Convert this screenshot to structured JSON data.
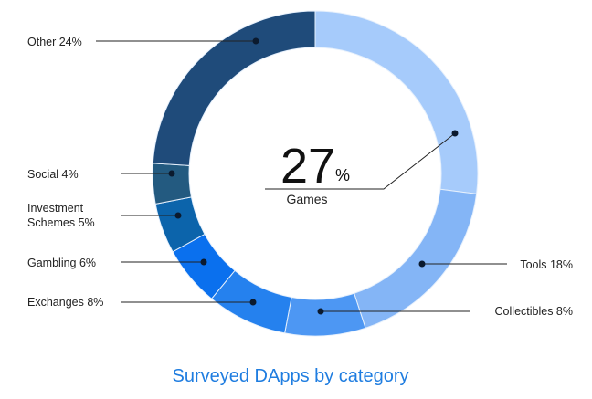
{
  "chart_data": {
    "type": "pie",
    "donut": true,
    "title": "Surveyed DApps by category",
    "highlight": {
      "value": "27",
      "unit": "%",
      "label": "Games"
    },
    "slices": [
      {
        "label": "Games",
        "value": 27,
        "color": "#a6cbfb"
      },
      {
        "label": "Tools",
        "value": 18,
        "color": "#84b5f6",
        "text": "Tools 18%"
      },
      {
        "label": "Collectibles",
        "value": 8,
        "color": "#4d97f3",
        "text": "Collectibles 8%"
      },
      {
        "label": "Exchanges",
        "value": 8,
        "color": "#2581ee",
        "text": "Exchanges 8%"
      },
      {
        "label": "Gambling",
        "value": 6,
        "color": "#0a70ee",
        "text": "Gambling 6%"
      },
      {
        "label": "Investment Schemes",
        "value": 5,
        "color": "#0c64ab",
        "text": [
          "Investment",
          "Schemes 5%"
        ]
      },
      {
        "label": "Social",
        "value": 4,
        "color": "#235a80",
        "text": "Social 4%"
      },
      {
        "label": "Other",
        "value": 24,
        "color": "#1f4b7a",
        "text": "Other 24%"
      }
    ]
  }
}
